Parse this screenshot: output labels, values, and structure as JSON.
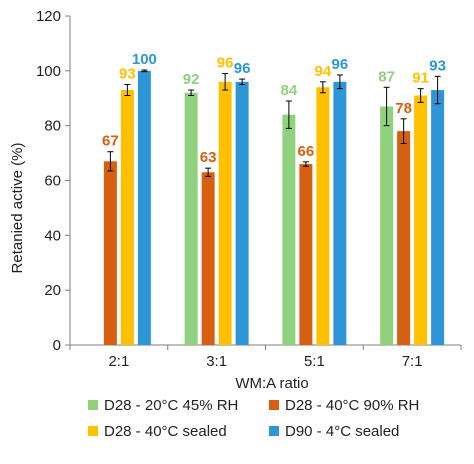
{
  "chart_data": {
    "type": "bar",
    "xlabel": "WM:A ratio",
    "ylabel": "Retanied active (%)",
    "ylim": [
      0,
      120
    ],
    "yticks": [
      0,
      20,
      40,
      60,
      80,
      100,
      120
    ],
    "grid": false,
    "legend_position": "bottom",
    "categories": [
      "2:1",
      "3:1",
      "5:1",
      "7:1"
    ],
    "series": [
      {
        "name": "D28 - 20°C 45% RH",
        "color": "#8fd17d",
        "values": [
          null,
          92,
          84,
          87
        ],
        "errors": [
          null,
          1,
          5,
          7
        ],
        "labels": [
          "",
          "92",
          "84",
          "87"
        ]
      },
      {
        "name": "D28 - 40°C 90% RH",
        "color": "#d75f12",
        "values": [
          67,
          63,
          66,
          78
        ],
        "errors": [
          3.5,
          1.5,
          0.8,
          4.5
        ],
        "labels": [
          "67",
          "63",
          "66",
          "78"
        ]
      },
      {
        "name": "D28 - 40°C sealed",
        "color": "#ffc000",
        "values": [
          93,
          96,
          94,
          91
        ],
        "errors": [
          2,
          3,
          2,
          2.5
        ],
        "labels": [
          "93",
          "96",
          "94",
          "91"
        ]
      },
      {
        "name": "D90 - 4°C sealed",
        "color": "#2e96d6",
        "values": [
          100,
          96,
          96,
          93
        ],
        "errors": [
          0.3,
          1,
          2.5,
          5
        ],
        "labels": [
          "100",
          "96",
          "96",
          "93"
        ]
      }
    ]
  }
}
